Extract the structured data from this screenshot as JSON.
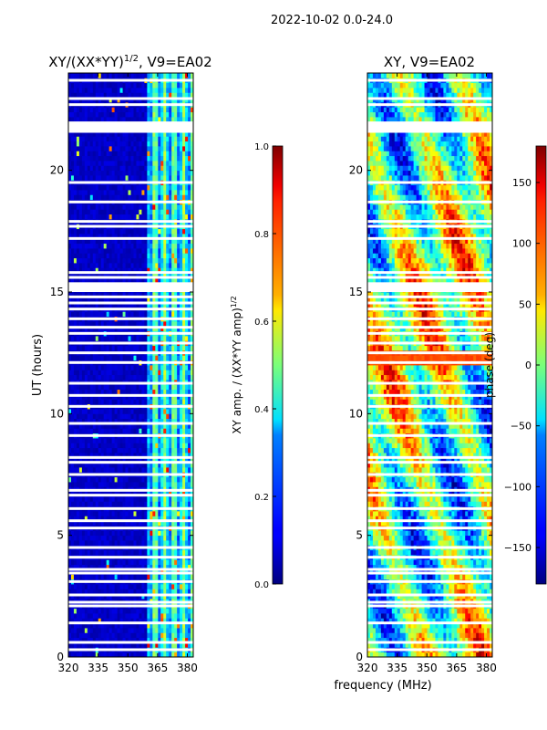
{
  "suptitle": "2022-10-02 0.0-24.0",
  "chart_data": [
    {
      "type": "heatmap",
      "title_prefix": "XY/(XX*YY)",
      "title_exponent": "1/2",
      "title_suffix": ", V9=EA02",
      "xlabel": "",
      "ylabel": "UT (hours)",
      "xlim": [
        320,
        383
      ],
      "ylim": [
        0,
        24
      ],
      "xticks": [
        320,
        335,
        350,
        365,
        380
      ],
      "yticks": [
        0,
        5,
        10,
        15,
        20
      ],
      "colorbar": {
        "label_prefix": "XY amp. / (XX*YY amp)",
        "label_exponent": "1/2",
        "range": [
          0.0,
          1.0
        ],
        "ticks": [
          "0.0",
          "0.2",
          "0.4",
          "0.6",
          "0.8",
          "1.0"
        ],
        "colormap": "jet"
      },
      "description_values": "mostly ~0.05 for 320-360 MHz; ~0.2-0.5 between 360-383 MHz"
    },
    {
      "type": "heatmap",
      "title": "XY, V9=EA02",
      "xlabel": "frequency (MHz)",
      "ylabel": "",
      "xlim": [
        320,
        383
      ],
      "ylim": [
        0,
        24
      ],
      "xticks": [
        320,
        335,
        350,
        365,
        380
      ],
      "yticks": [
        0,
        5,
        10,
        15,
        20
      ],
      "colorbar": {
        "label": "phase (deg)",
        "range": [
          -180,
          180
        ],
        "ticks": [
          "−150",
          "−100",
          "−50",
          "0",
          "50",
          "100",
          "150"
        ],
        "tick_values": [
          -150,
          -100,
          -50,
          0,
          50,
          100,
          150
        ],
        "colormap": "jet"
      }
    }
  ],
  "flagged_hours": [
    0.3,
    0.6,
    1.4,
    2.1,
    2.25,
    2.55,
    3.1,
    3.45,
    3.6,
    4.1,
    4.5,
    5.3,
    5.6,
    6.1,
    6.65,
    6.85,
    7.5,
    8.0,
    8.2,
    9.1,
    9.6,
    10.3,
    10.75,
    11.25,
    12.1,
    12.5,
    12.9,
    13.3,
    13.55,
    13.9,
    14.3,
    14.55,
    14.8,
    15.6,
    15.8,
    17.2,
    17.7,
    17.9,
    18.7,
    19.5,
    21.6,
    21.95,
    22.7,
    22.95,
    23.7
  ],
  "flagged_bands": [
    [
      15.0,
      15.4
    ],
    [
      21.6,
      22.0
    ]
  ]
}
